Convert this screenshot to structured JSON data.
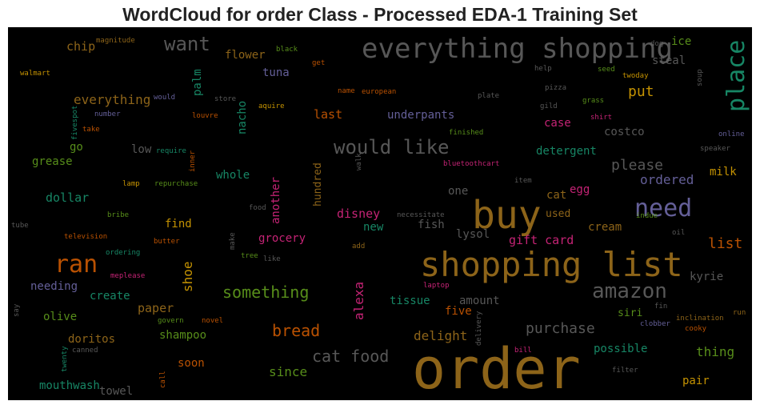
{
  "title": "WordCloud for order Class - Processed EDA-1 Training Set",
  "words": [
    {
      "text": "order",
      "color": "#a6761d"
    },
    {
      "text": "shopping list",
      "color": "#a6761d"
    },
    {
      "text": "buy",
      "color": "#a6761d"
    },
    {
      "text": "everything shopping",
      "color": "#666666"
    },
    {
      "text": "place",
      "color": "#1b9e77"
    },
    {
      "text": "need",
      "color": "#7570b3"
    },
    {
      "text": "ran",
      "color": "#d95f02"
    },
    {
      "text": "amazon",
      "color": "#666666"
    },
    {
      "text": "would like",
      "color": "#666666"
    },
    {
      "text": "want",
      "color": "#666666"
    },
    {
      "text": "something",
      "color": "#66a61e"
    },
    {
      "text": "cat food",
      "color": "#666666"
    },
    {
      "text": "bread",
      "color": "#d95f02"
    },
    {
      "text": "purchase",
      "color": "#666666"
    },
    {
      "text": "please",
      "color": "#666666"
    },
    {
      "text": "list",
      "color": "#d95f02"
    },
    {
      "text": "ordered",
      "color": "#7570b3"
    },
    {
      "text": "put",
      "color": "#e6ab02"
    },
    {
      "text": "gift card",
      "color": "#e7298a"
    },
    {
      "text": "everything",
      "color": "#a6761d"
    },
    {
      "text": "chip",
      "color": "#a6761d"
    },
    {
      "text": "last",
      "color": "#d95f02"
    },
    {
      "text": "underpants",
      "color": "#7570b3"
    },
    {
      "text": "disney",
      "color": "#e7298a"
    },
    {
      "text": "alexa",
      "color": "#e7298a"
    },
    {
      "text": "shoe",
      "color": "#e6ab02"
    },
    {
      "text": "another",
      "color": "#e7298a"
    },
    {
      "text": "hundred",
      "color": "#a6761d"
    },
    {
      "text": "nacho",
      "color": "#1b9e77"
    },
    {
      "text": "palm",
      "color": "#1b9e77"
    },
    {
      "text": "delight",
      "color": "#a6761d"
    },
    {
      "text": "since",
      "color": "#66a61e"
    },
    {
      "text": "thing",
      "color": "#66a61e"
    },
    {
      "text": "tuna",
      "color": "#7570b3"
    },
    {
      "text": "flower",
      "color": "#a6761d"
    },
    {
      "text": "steal",
      "color": "#666666"
    },
    {
      "text": "ice",
      "color": "#66a61e"
    },
    {
      "text": "case",
      "color": "#e7298a"
    },
    {
      "text": "costco",
      "color": "#666666"
    },
    {
      "text": "detergent",
      "color": "#1b9e77"
    },
    {
      "text": "milk",
      "color": "#e6ab02"
    },
    {
      "text": "egg",
      "color": "#e7298a"
    },
    {
      "text": "cat",
      "color": "#a6761d"
    },
    {
      "text": "one",
      "color": "#666666"
    },
    {
      "text": "new",
      "color": "#1b9e77"
    },
    {
      "text": "fish",
      "color": "#666666"
    },
    {
      "text": "lysol",
      "color": "#666666"
    },
    {
      "text": "used",
      "color": "#a6761d"
    },
    {
      "text": "cream",
      "color": "#a6761d"
    },
    {
      "text": "kyrie",
      "color": "#666666"
    },
    {
      "text": "siri",
      "color": "#66a61e"
    },
    {
      "text": "possible",
      "color": "#1b9e77"
    },
    {
      "text": "pair",
      "color": "#e6ab02"
    },
    {
      "text": "five",
      "color": "#d95f02"
    },
    {
      "text": "amount",
      "color": "#666666"
    },
    {
      "text": "tissue",
      "color": "#1b9e77"
    },
    {
      "text": "grocery",
      "color": "#e7298a"
    },
    {
      "text": "find",
      "color": "#e6ab02"
    },
    {
      "text": "paper",
      "color": "#a6761d"
    },
    {
      "text": "create",
      "color": "#1b9e77"
    },
    {
      "text": "needing",
      "color": "#7570b3"
    },
    {
      "text": "olive",
      "color": "#66a61e"
    },
    {
      "text": "doritos",
      "color": "#a6761d"
    },
    {
      "text": "shampoo",
      "color": "#66a61e"
    },
    {
      "text": "soon",
      "color": "#d95f02"
    },
    {
      "text": "mouthwash",
      "color": "#1b9e77"
    },
    {
      "text": "towel",
      "color": "#666666"
    },
    {
      "text": "dollar",
      "color": "#1b9e77"
    },
    {
      "text": "grease",
      "color": "#66a61e"
    },
    {
      "text": "go",
      "color": "#66a61e"
    },
    {
      "text": "low",
      "color": "#666666"
    },
    {
      "text": "whole",
      "color": "#1b9e77"
    },
    {
      "text": "magnitude",
      "color": "#a6761d"
    },
    {
      "text": "black",
      "color": "#66a61e"
    },
    {
      "text": "walmart",
      "color": "#e6ab02"
    },
    {
      "text": "get",
      "color": "#d95f02"
    },
    {
      "text": "name",
      "color": "#d95f02"
    },
    {
      "text": "european",
      "color": "#d95f02"
    },
    {
      "text": "would",
      "color": "#7570b3"
    },
    {
      "text": "store",
      "color": "#666666"
    },
    {
      "text": "aquire",
      "color": "#e6ab02"
    },
    {
      "text": "louvre",
      "color": "#d95f02"
    },
    {
      "text": "number",
      "color": "#7570b3"
    },
    {
      "text": "fivespot",
      "color": "#1b9e77"
    },
    {
      "text": "take",
      "color": "#d95f02"
    },
    {
      "text": "require",
      "color": "#1b9e77"
    },
    {
      "text": "inner",
      "color": "#d95f02"
    },
    {
      "text": "walk",
      "color": "#666666"
    },
    {
      "text": "bluetoothcart",
      "color": "#e7298a"
    },
    {
      "text": "finished",
      "color": "#66a61e"
    },
    {
      "text": "plate",
      "color": "#666666"
    },
    {
      "text": "gild",
      "color": "#666666"
    },
    {
      "text": "shirt",
      "color": "#e7298a"
    },
    {
      "text": "grass",
      "color": "#66a61e"
    },
    {
      "text": "help",
      "color": "#666666"
    },
    {
      "text": "pizza",
      "color": "#666666"
    },
    {
      "text": "seed",
      "color": "#66a61e"
    },
    {
      "text": "twoday",
      "color": "#e6ab02"
    },
    {
      "text": "soup",
      "color": "#666666"
    },
    {
      "text": "dog",
      "color": "#666666"
    },
    {
      "text": "online",
      "color": "#7570b3"
    },
    {
      "text": "speaker",
      "color": "#666666"
    },
    {
      "text": "item",
      "color": "#666666"
    },
    {
      "text": "lamp",
      "color": "#e6ab02"
    },
    {
      "text": "repurchase",
      "color": "#66a61e"
    },
    {
      "text": "tube",
      "color": "#666666"
    },
    {
      "text": "bribe",
      "color": "#66a61e"
    },
    {
      "text": "television",
      "color": "#d95f02"
    },
    {
      "text": "food",
      "color": "#666666"
    },
    {
      "text": "butter",
      "color": "#d95f02"
    },
    {
      "text": "make",
      "color": "#666666"
    },
    {
      "text": "tree",
      "color": "#66a61e"
    },
    {
      "text": "like",
      "color": "#666666"
    },
    {
      "text": "add",
      "color": "#a6761d"
    },
    {
      "text": "necessitate",
      "color": "#666666"
    },
    {
      "text": "indue",
      "color": "#66a61e"
    },
    {
      "text": "oil",
      "color": "#666666"
    },
    {
      "text": "ordering",
      "color": "#1b9e77"
    },
    {
      "text": "meplease",
      "color": "#e7298a"
    },
    {
      "text": "laptop",
      "color": "#e7298a"
    },
    {
      "text": "fin",
      "color": "#666666"
    },
    {
      "text": "run",
      "color": "#a6761d"
    },
    {
      "text": "inclination",
      "color": "#a6761d"
    },
    {
      "text": "clobber",
      "color": "#7570b3"
    },
    {
      "text": "cooky",
      "color": "#d95f02"
    },
    {
      "text": "delivery",
      "color": "#666666"
    },
    {
      "text": "bill",
      "color": "#e7298a"
    },
    {
      "text": "filter",
      "color": "#666666"
    },
    {
      "text": "govern",
      "color": "#66a61e"
    },
    {
      "text": "novel",
      "color": "#d95f02"
    },
    {
      "text": "say",
      "color": "#666666"
    },
    {
      "text": "twenty",
      "color": "#1b9e77"
    },
    {
      "text": "canned",
      "color": "#666666"
    },
    {
      "text": "call",
      "color": "#d95f02"
    }
  ]
}
